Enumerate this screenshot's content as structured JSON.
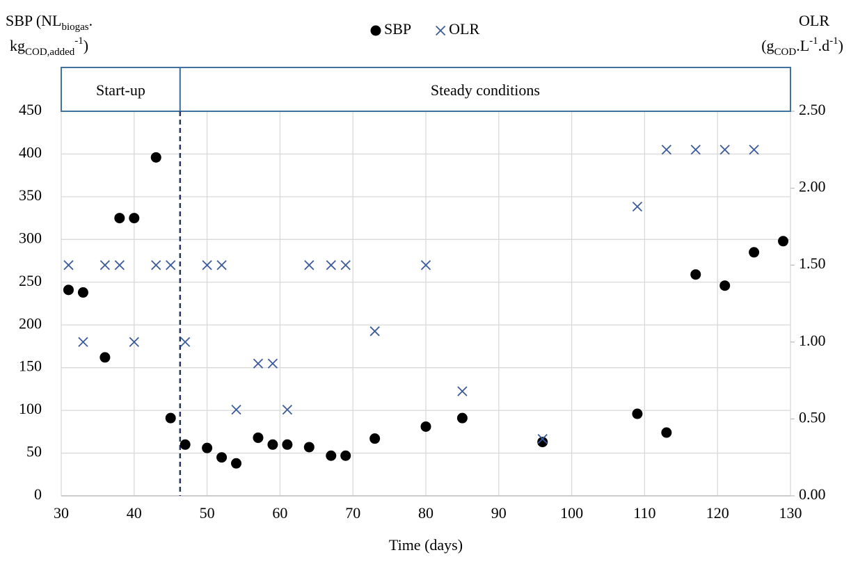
{
  "chart_data": {
    "type": "scatter",
    "y_label": [
      "SBP (NL",
      "biogas",
      ".",
      "kg",
      "COD,added",
      "-1",
      ")"
    ],
    "y2_label": [
      "OLR",
      "(g",
      "COD",
      ".L",
      "-1",
      ".d",
      "-1",
      ")"
    ],
    "x_label": "Time (days)",
    "xlim": [
      30,
      130
    ],
    "xticks": [
      30,
      40,
      50,
      60,
      70,
      80,
      90,
      100,
      110,
      120,
      130
    ],
    "ylim": [
      0,
      450
    ],
    "yticks": [
      0,
      50,
      100,
      150,
      200,
      250,
      300,
      350,
      400,
      450
    ],
    "y2lim": [
      0,
      2.5
    ],
    "y2ticks": [
      {
        "value": 0,
        "label": "0.00"
      },
      {
        "value": 0.5,
        "label": "0.50"
      },
      {
        "value": 1,
        "label": "1.00"
      },
      {
        "value": 1.5,
        "label": "1.50"
      },
      {
        "value": 2,
        "label": "2.00"
      },
      {
        "value": 2.5,
        "label": "2.50"
      }
    ],
    "grid": true,
    "phases": [
      {
        "label": "Start-up",
        "start": 30,
        "end": 46.3
      },
      {
        "label": "Steady conditions",
        "start": 46.3,
        "end": 130
      }
    ],
    "series": [
      {
        "name": "SBP",
        "color": "#000000",
        "marker": "circle",
        "x": [
          31,
          33,
          36,
          38,
          40,
          43,
          45,
          47,
          50,
          52,
          54,
          57,
          59,
          61,
          64,
          67,
          69,
          73,
          80,
          85,
          96,
          109,
          113,
          117,
          121,
          125,
          129
        ],
        "values": [
          241,
          238,
          162,
          325,
          325,
          396,
          91,
          60,
          56,
          45,
          38,
          68,
          60,
          60,
          57,
          47,
          47,
          67,
          81,
          91,
          63,
          96,
          74,
          259,
          246,
          285,
          298
        ]
      },
      {
        "name": "OLR",
        "color": "#3b5a9a",
        "marker": "x",
        "axis": "y2",
        "x": [
          31,
          33,
          36,
          38,
          40,
          43,
          45,
          47,
          50,
          52,
          54,
          57,
          59,
          61,
          64,
          67,
          69,
          73,
          80,
          85,
          96,
          109,
          113,
          117,
          121,
          125
        ],
        "values": [
          1.5,
          1.0,
          1.5,
          1.5,
          1.0,
          1.5,
          1.5,
          1.0,
          1.5,
          1.5,
          0.56,
          0.86,
          0.86,
          0.56,
          1.5,
          1.5,
          1.5,
          1.07,
          1.5,
          0.68,
          0.37,
          1.88,
          2.25,
          2.25,
          2.25,
          2.25
        ]
      }
    ]
  }
}
